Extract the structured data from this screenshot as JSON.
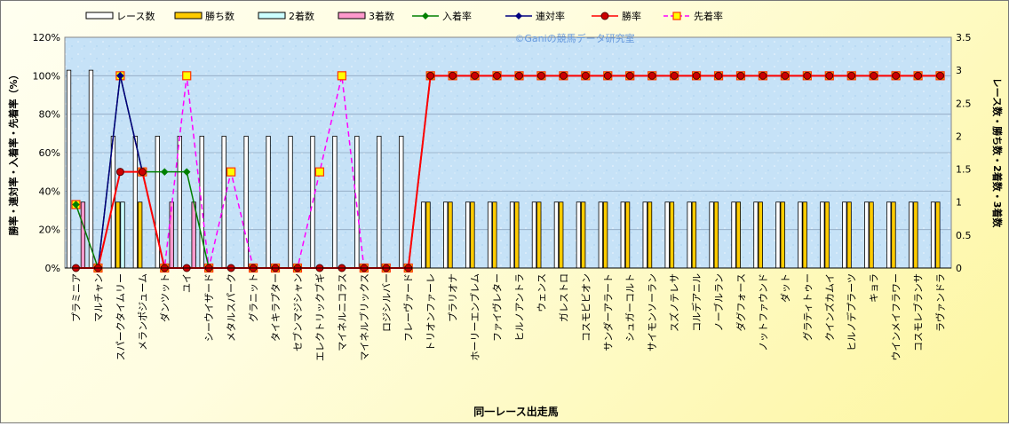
{
  "watermark": "©Ganiの競馬データ研究室",
  "legend": [
    {
      "label": "レース数",
      "kind": "bar",
      "fill": "#ffffff",
      "stroke": "#000000"
    },
    {
      "label": "勝ち数",
      "kind": "bar",
      "fill": "#ffcc00",
      "stroke": "#000000"
    },
    {
      "label": "2着数",
      "kind": "bar",
      "fill": "#ccffff",
      "stroke": "#000000"
    },
    {
      "label": "3着数",
      "kind": "bar",
      "fill": "#ff99cc",
      "stroke": "#000000"
    },
    {
      "label": "入着率",
      "kind": "line",
      "color": "#008000",
      "marker": "diamond"
    },
    {
      "label": "連対率",
      "kind": "line",
      "color": "#000080",
      "marker": "diamond"
    },
    {
      "label": "勝率",
      "kind": "line",
      "color": "#ff0000",
      "marker": "circle"
    },
    {
      "label": "先着率",
      "kind": "dashed",
      "color": "#ff00ff",
      "marker": "square"
    }
  ],
  "chart_data": {
    "type": "bar",
    "xlabel": "同一レース出走馬",
    "ylabel_left": "勝率・連対率・入着率・先着率（%）",
    "ylabel_right": "レース数・勝ち数・2着数・3着数",
    "left_ticks": [
      "0%",
      "20%",
      "40%",
      "60%",
      "80%",
      "100%",
      "120%"
    ],
    "right_ticks": [
      "0",
      "0.5",
      "1",
      "1.5",
      "2",
      "2.5",
      "3",
      "3.5"
    ],
    "ylim_left": [
      0,
      120
    ],
    "ylim_right": [
      0,
      3.5
    ],
    "grid": true,
    "categories": [
      "プラミニア",
      "マルチャン",
      "スパークタイムリー",
      "メランポジューム",
      "ダンツット",
      "ユイ",
      "シーウイザード",
      "メタルスパーク",
      "グラニット",
      "タイキラプター",
      "セブンマジシャン",
      "エレクトリックブギ",
      "マイネルニコラス",
      "マイネルブリックス",
      "ロジシルバー",
      "フレーヴァード",
      "トリオンファーレ",
      "プラリオナ",
      "ホーリーエンブレム",
      "ファイヴレター",
      "ヒルノアントラ",
      "ウェンス",
      "ガレストロ",
      "コスモピビオン",
      "サンダーアラート",
      "シュガーコルト",
      "サイモンソーラン",
      "スズノテレサ",
      "コルデアニル",
      "ノーブルラン",
      "ダグフォース",
      "ノットファウンド",
      "ダット",
      "グラティトゥー",
      "クインズカムイ",
      "ヒルノデプラーツ",
      "キョラ",
      "ウインメイフラワー",
      "コスモレブランサ",
      "ラヴァンドラ"
    ],
    "series": [
      {
        "name": "レース数",
        "axis": "right",
        "values": [
          3,
          3,
          2,
          2,
          2,
          2,
          2,
          2,
          2,
          2,
          2,
          2,
          2,
          2,
          2,
          2,
          1,
          1,
          1,
          1,
          1,
          1,
          1,
          1,
          1,
          1,
          1,
          1,
          1,
          1,
          1,
          1,
          1,
          1,
          1,
          1,
          1,
          1,
          1,
          1
        ]
      },
      {
        "name": "勝ち数",
        "axis": "right",
        "values": [
          0,
          0,
          1,
          1,
          0,
          0,
          0,
          0,
          0,
          0,
          0,
          0,
          0,
          0,
          0,
          0,
          1,
          1,
          1,
          1,
          1,
          1,
          1,
          1,
          1,
          1,
          1,
          1,
          1,
          1,
          1,
          1,
          1,
          1,
          1,
          1,
          1,
          1,
          1,
          1
        ]
      },
      {
        "name": "2着数",
        "axis": "right",
        "values": [
          0,
          0,
          1,
          0,
          0,
          0,
          0,
          0,
          0,
          0,
          0,
          0,
          0,
          0,
          0,
          0,
          0,
          0,
          0,
          0,
          0,
          0,
          0,
          0,
          0,
          0,
          0,
          0,
          0,
          0,
          0,
          0,
          0,
          0,
          0,
          0,
          0,
          0,
          0,
          0
        ]
      },
      {
        "name": "3着数",
        "axis": "right",
        "values": [
          1,
          0,
          0,
          0,
          1,
          1,
          0,
          0,
          0,
          0,
          0,
          0,
          0,
          0,
          0,
          0,
          0,
          0,
          0,
          0,
          0,
          0,
          0,
          0,
          0,
          0,
          0,
          0,
          0,
          0,
          0,
          0,
          0,
          0,
          0,
          0,
          0,
          0,
          0,
          0
        ]
      },
      {
        "name": "入着率",
        "axis": "left",
        "values": [
          33,
          0,
          100,
          50,
          50,
          50,
          0,
          0,
          0,
          0,
          0,
          0,
          0,
          0,
          0,
          0,
          100,
          100,
          100,
          100,
          100,
          100,
          100,
          100,
          100,
          100,
          100,
          100,
          100,
          100,
          100,
          100,
          100,
          100,
          100,
          100,
          100,
          100,
          100,
          100
        ]
      },
      {
        "name": "連対率",
        "axis": "left",
        "values": [
          0,
          0,
          100,
          50,
          0,
          0,
          0,
          0,
          0,
          0,
          0,
          0,
          0,
          0,
          0,
          0,
          100,
          100,
          100,
          100,
          100,
          100,
          100,
          100,
          100,
          100,
          100,
          100,
          100,
          100,
          100,
          100,
          100,
          100,
          100,
          100,
          100,
          100,
          100,
          100
        ]
      },
      {
        "name": "勝率",
        "axis": "left",
        "values": [
          0,
          0,
          50,
          50,
          0,
          0,
          0,
          0,
          0,
          0,
          0,
          0,
          0,
          0,
          0,
          0,
          100,
          100,
          100,
          100,
          100,
          100,
          100,
          100,
          100,
          100,
          100,
          100,
          100,
          100,
          100,
          100,
          100,
          100,
          100,
          100,
          100,
          100,
          100,
          100
        ]
      },
      {
        "name": "先着率",
        "axis": "left",
        "values": [
          33,
          0,
          100,
          50,
          0,
          100,
          0,
          50,
          0,
          0,
          0,
          50,
          100,
          0,
          0,
          0,
          100,
          100,
          100,
          100,
          100,
          100,
          100,
          100,
          100,
          100,
          100,
          100,
          100,
          100,
          100,
          100,
          100,
          100,
          100,
          100,
          100,
          100,
          100,
          100
        ]
      }
    ]
  }
}
